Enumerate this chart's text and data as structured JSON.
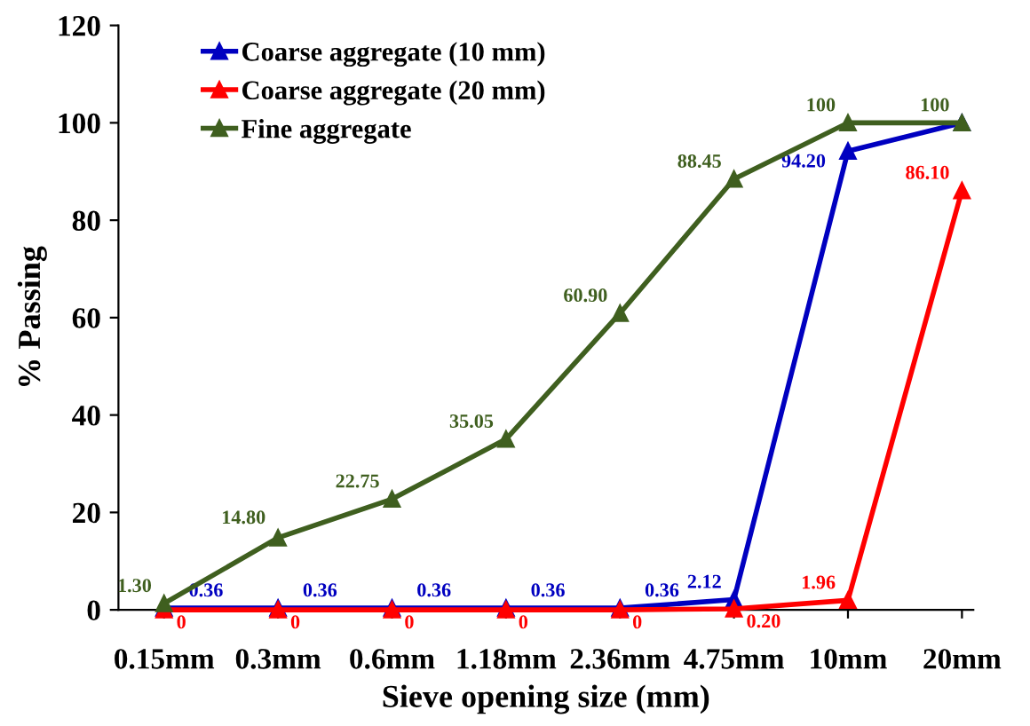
{
  "chart_data": {
    "type": "line",
    "xlabel": "Sieve opening size (mm)",
    "ylabel": "% Passing",
    "categories": [
      "0.15mm",
      "0.3mm",
      "0.6mm",
      "1.18mm",
      "2.36mm",
      "4.75mm",
      "10mm",
      "20mm"
    ],
    "series": [
      {
        "name": "Coarse aggregate (10 mm)",
        "color": "#0000c0",
        "values": [
          0.36,
          0.36,
          0.36,
          0.36,
          0.36,
          2.12,
          94.2,
          100
        ],
        "value_labels": [
          "0.36",
          "0.36",
          "0.36",
          "0.36",
          "0.36",
          "2.12",
          "94.20",
          null
        ]
      },
      {
        "name": "Coarse aggregate (20 mm)",
        "color": "#ff0000",
        "values": [
          0,
          0,
          0,
          0,
          0,
          0.2,
          1.96,
          86.1
        ],
        "value_labels": [
          "0",
          "0",
          "0",
          "0",
          "0",
          "0.20",
          "1.96",
          "86.10"
        ]
      },
      {
        "name": "Fine aggregate",
        "color": "#3f5f1f",
        "values": [
          1.3,
          14.8,
          22.75,
          35.05,
          60.9,
          88.45,
          100,
          100
        ],
        "value_labels": [
          "1.30",
          "14.80",
          "22.75",
          "35.05",
          "60.90",
          "88.45",
          "100",
          "100"
        ]
      }
    ],
    "ylim": [
      0,
      120
    ],
    "yticks": [
      0,
      20,
      40,
      60,
      80,
      100,
      120
    ],
    "grid": false,
    "legend": "top left",
    "marker": "triangle",
    "line_style": "solid"
  }
}
